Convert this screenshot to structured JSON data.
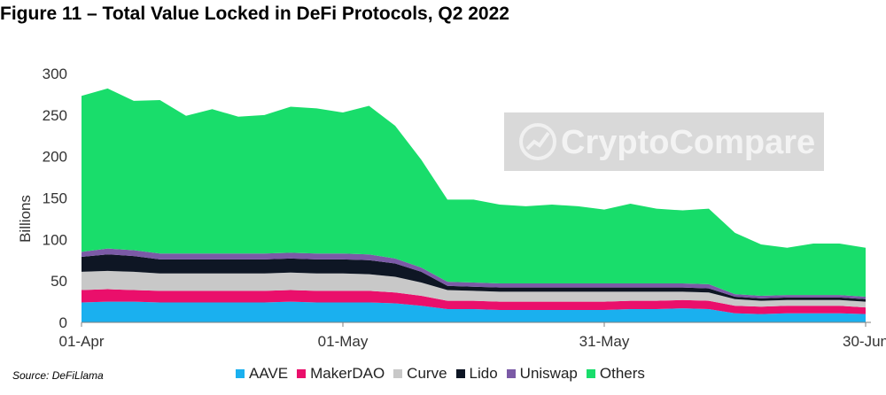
{
  "title": "Figure 11 – Total Value Locked in DeFi Protocols, Q2 2022",
  "source": "Source: DeFiLlama",
  "watermark": "CryptoCompare",
  "colors": {
    "AAVE": "#1ab0ef",
    "MakerDAO": "#ea0f6b",
    "Curve": "#c8c8c8",
    "Lido": "#0e1624",
    "Uniswap": "#7b5aa6",
    "Others": "#19dd6b",
    "axis": "#7f7f7f",
    "text": "#333333"
  },
  "chart_data": {
    "type": "area",
    "stacked": true,
    "ylabel": "Billions",
    "xlabel": "",
    "ylim": [
      0,
      300
    ],
    "yticks": [
      "0",
      "50",
      "100",
      "150",
      "200",
      "250",
      "300"
    ],
    "xtick_labels": [
      "01-Apr",
      "01-May",
      "31-May",
      "30-Jun"
    ],
    "x": [
      "01-Apr",
      "04-Apr",
      "07-Apr",
      "10-Apr",
      "13-Apr",
      "16-Apr",
      "19-Apr",
      "22-Apr",
      "25-Apr",
      "28-Apr",
      "01-May",
      "04-May",
      "07-May",
      "10-May",
      "13-May",
      "16-May",
      "19-May",
      "22-May",
      "25-May",
      "28-May",
      "31-May",
      "03-Jun",
      "06-Jun",
      "09-Jun",
      "12-Jun",
      "15-Jun",
      "18-Jun",
      "21-Jun",
      "24-Jun",
      "27-Jun",
      "30-Jun"
    ],
    "series": [
      {
        "name": "AAVE",
        "values": [
          24,
          25,
          25,
          24,
          24,
          24,
          24,
          24,
          25,
          24,
          24,
          24,
          23,
          20,
          16,
          16,
          15,
          15,
          15,
          15,
          15,
          16,
          16,
          17,
          16,
          11,
          10,
          11,
          11,
          11,
          10
        ]
      },
      {
        "name": "MakerDAO",
        "values": [
          15,
          15,
          14,
          14,
          14,
          14,
          14,
          14,
          14,
          14,
          14,
          14,
          13,
          12,
          10,
          10,
          10,
          10,
          10,
          10,
          10,
          10,
          10,
          10,
          10,
          9,
          9,
          9,
          9,
          9,
          8
        ]
      },
      {
        "name": "Curve",
        "values": [
          22,
          22,
          22,
          21,
          21,
          21,
          21,
          21,
          21,
          21,
          21,
          20,
          19,
          16,
          13,
          12,
          12,
          12,
          12,
          12,
          12,
          11,
          11,
          10,
          10,
          8,
          7,
          7,
          7,
          7,
          7
        ]
      },
      {
        "name": "Lido",
        "values": [
          18,
          20,
          19,
          17,
          17,
          17,
          17,
          17,
          17,
          17,
          17,
          17,
          16,
          13,
          5,
          5,
          5,
          5,
          5,
          5,
          5,
          5,
          5,
          5,
          5,
          3,
          3,
          3,
          3,
          3,
          3
        ]
      },
      {
        "name": "Uniswap",
        "values": [
          6,
          7,
          7,
          7,
          7,
          7,
          7,
          7,
          7,
          7,
          7,
          7,
          6,
          5,
          5,
          5,
          5,
          5,
          5,
          5,
          5,
          5,
          5,
          5,
          5,
          3,
          3,
          3,
          3,
          3,
          3
        ]
      },
      {
        "name": "Others",
        "values": [
          188,
          193,
          180,
          185,
          166,
          174,
          165,
          167,
          176,
          175,
          170,
          179,
          160,
          130,
          99,
          100,
          95,
          93,
          95,
          93,
          89,
          96,
          90,
          88,
          91,
          74,
          62,
          57,
          62,
          62,
          59
        ]
      }
    ]
  }
}
